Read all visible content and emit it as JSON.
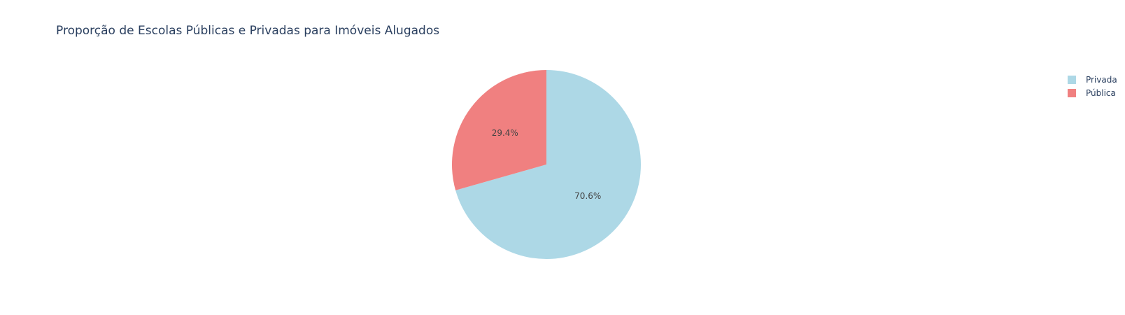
{
  "chart_data": {
    "type": "pie",
    "title": "Proporção de Escolas Públicas e Privadas para Imóveis Alugados",
    "slices": [
      {
        "label": "Privada",
        "percent": 70.6,
        "display": "70.6%",
        "color": "#add8e6"
      },
      {
        "label": "Pública",
        "percent": 29.4,
        "display": "29.4%",
        "color": "#f08080"
      }
    ],
    "start_angle_deg": 0,
    "direction": "clockwise",
    "legend_position": "top-right"
  }
}
